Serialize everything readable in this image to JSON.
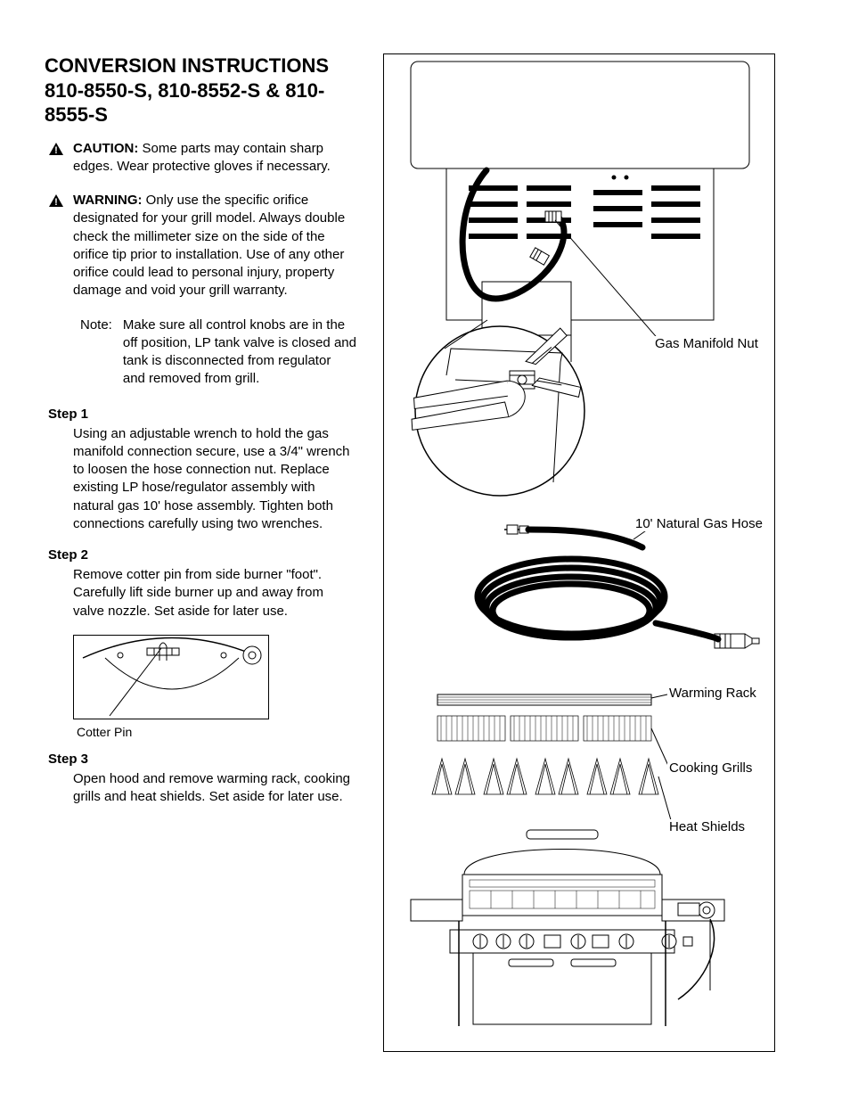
{
  "title": "CONVERSION INSTRUCTIONS\n810-8550-S, 810-8552-S & 810-8555-S",
  "caution": {
    "label": "CAUTION:",
    "text": "Some parts may contain sharp edges. Wear protective gloves if necessary."
  },
  "warning": {
    "label": "WARNING:",
    "text": "Only use the specific orifice designated for your grill model. Always double check the millimeter size on the side of the orifice tip prior to installation. Use of any other orifice could lead to personal injury, property damage and void your grill warranty."
  },
  "note": {
    "label": "Note:",
    "text": "Make sure all control knobs are in the off position, LP tank valve is closed and tank is disconnected from regulator and removed from grill."
  },
  "steps": [
    {
      "head": "Step 1",
      "body": "Using an adjustable wrench to hold the gas manifold connection secure, use a 3/4\" wrench to loosen the hose connection nut. Replace existing LP hose/regulator assembly with natural gas 10' hose assembly. Tighten both connections carefully using two wrenches."
    },
    {
      "head": "Step 2",
      "body": "Remove cotter pin from side burner \"foot\". Carefully lift side burner up and away from valve nozzle. Set aside for later use."
    },
    {
      "head": "Step 3",
      "body": "Open hood and remove warming rack, cooking grills and heat shields. Set aside for later use."
    }
  ],
  "cotterCaption": "Cotter Pin",
  "callouts": {
    "manifold": "Gas Manifold Nut",
    "hose": "10' Natural Gas Hose",
    "warming": "Warming Rack",
    "grills": "Cooking Grills",
    "shields": "Heat Shields"
  },
  "style": {
    "page_bg": "#ffffff",
    "text_color": "#000000",
    "title_fontsize": 22,
    "body_fontsize": 15,
    "line_stroke": "#000000"
  }
}
